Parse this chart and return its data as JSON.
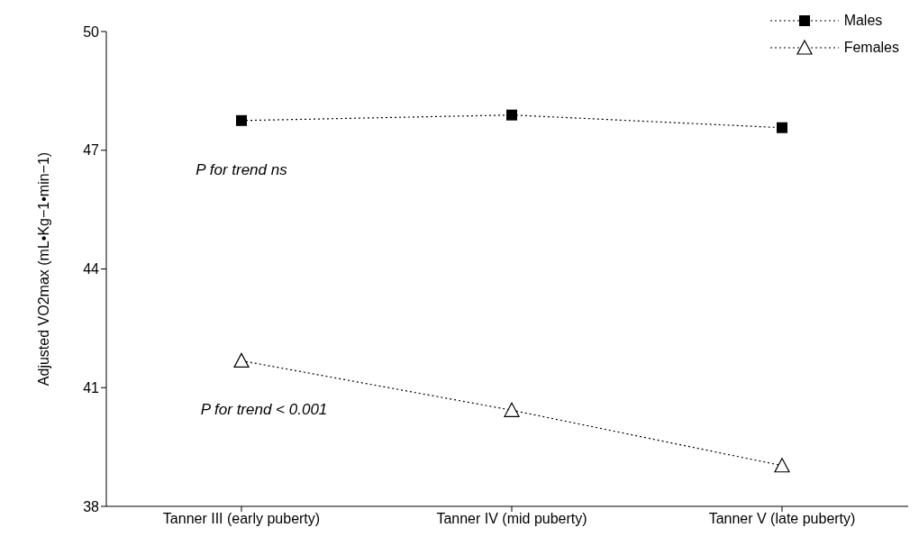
{
  "chart_data": {
    "type": "line",
    "ylabel": "Adjusted VO2max (mL•Kg−1•min−1)",
    "categories": [
      "Tanner III (early puberty)",
      "Tanner IV (mid puberty)",
      "Tanner V (late puberty)"
    ],
    "series": [
      {
        "name": "Males",
        "color": "#000000",
        "marker": "square",
        "values": [
          47.75,
          47.89,
          47.57
        ]
      },
      {
        "name": "Females",
        "color": "#000000",
        "marker": "triangle",
        "values": [
          41.68,
          40.43,
          39.03
        ]
      }
    ],
    "ylim": [
      38,
      50
    ],
    "yticks": [
      38,
      41,
      44,
      47,
      50
    ],
    "grid": false,
    "legend": "top right",
    "line_style": "dotted",
    "annotations": [
      "P for trend ns",
      "P for trend < 0.001"
    ]
  }
}
